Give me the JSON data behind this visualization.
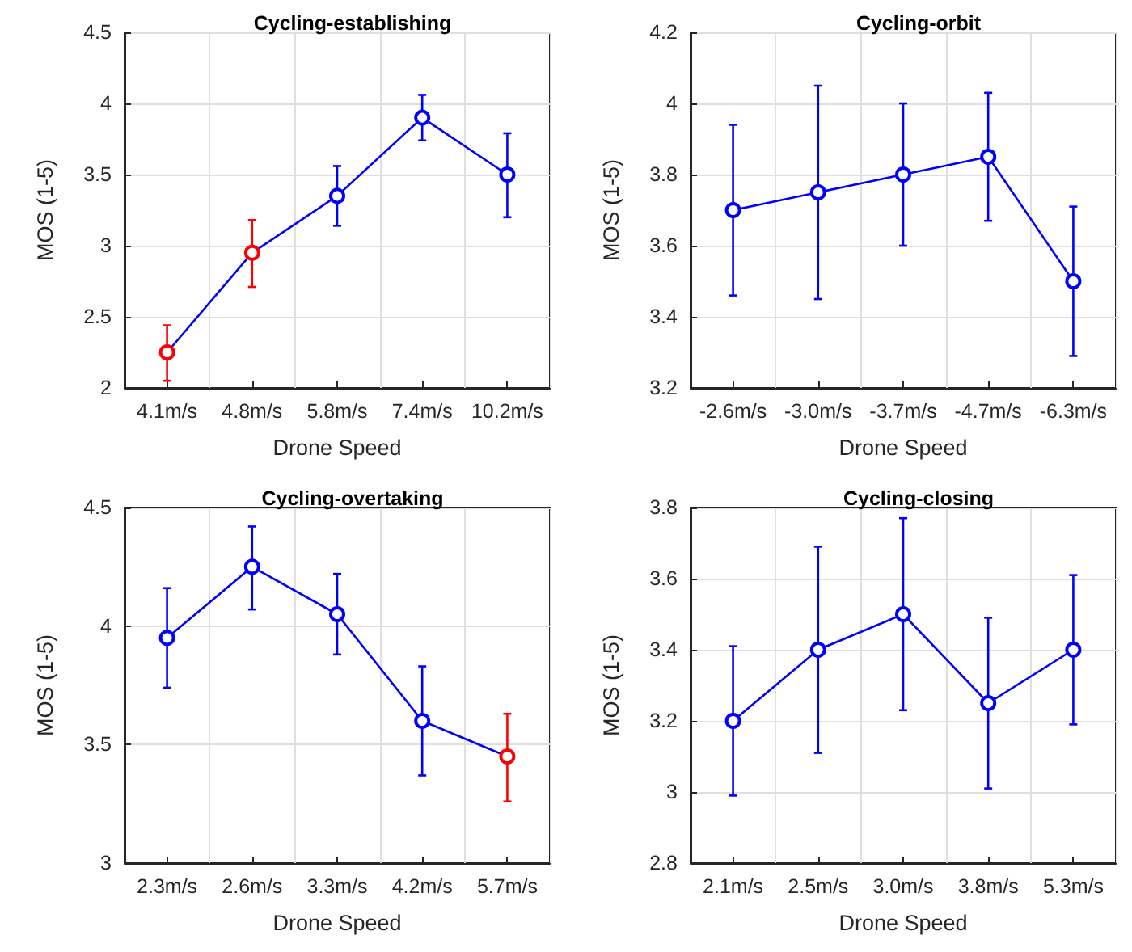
{
  "chart_data": [
    {
      "type": "line",
      "title": "Cycling-establishing",
      "xlabel": "Drone Speed",
      "ylabel": "MOS (1-5)",
      "categories": [
        "4.1m/s",
        "4.8m/s",
        "5.8m/s",
        "7.4m/s",
        "10.2m/s"
      ],
      "ylim": [
        2,
        4.5
      ],
      "yticks": [
        2,
        2.5,
        3,
        3.5,
        4,
        4.5
      ],
      "grid": true,
      "marker": "circle",
      "line_style": "solid",
      "series": [
        {
          "color": "#0000ff",
          "colors": [
            "#ff0000",
            "#ff0000",
            "#0000ff",
            "#0000ff",
            "#0000ff"
          ],
          "values": [
            2.25,
            2.95,
            3.35,
            3.9,
            3.5
          ],
          "errors": [
            [
              2.05,
              2.44
            ],
            [
              2.71,
              3.18
            ],
            [
              3.14,
              3.56
            ],
            [
              3.74,
              4.06
            ],
            [
              3.2,
              3.79
            ]
          ]
        }
      ]
    },
    {
      "type": "line",
      "title": "Cycling-orbit",
      "xlabel": "Drone Speed",
      "ylabel": "MOS (1-5)",
      "categories": [
        "-2.6m/s",
        "-3.0m/s",
        "-3.7m/s",
        "-4.7m/s",
        "-6.3m/s"
      ],
      "ylim": [
        3.2,
        4.2
      ],
      "yticks": [
        3.2,
        3.4,
        3.6,
        3.8,
        4,
        4.2
      ],
      "grid": true,
      "marker": "circle",
      "line_style": "solid",
      "series": [
        {
          "color": "#0000ff",
          "colors": [
            "#0000ff",
            "#0000ff",
            "#0000ff",
            "#0000ff",
            "#0000ff"
          ],
          "values": [
            3.7,
            3.75,
            3.8,
            3.85,
            3.5
          ],
          "errors": [
            [
              3.46,
              3.94
            ],
            [
              3.45,
              4.05
            ],
            [
              3.6,
              4.0
            ],
            [
              3.67,
              4.03
            ],
            [
              3.29,
              3.71
            ]
          ]
        }
      ]
    },
    {
      "type": "line",
      "title": "Cycling-overtaking",
      "xlabel": "Drone Speed",
      "ylabel": "MOS (1-5)",
      "categories": [
        "2.3m/s",
        "2.6m/s",
        "3.3m/s",
        "4.2m/s",
        "5.7m/s"
      ],
      "ylim": [
        3,
        4.5
      ],
      "yticks": [
        3,
        3.5,
        4,
        4.5
      ],
      "grid": true,
      "marker": "circle",
      "line_style": "solid",
      "series": [
        {
          "color": "#0000ff",
          "colors": [
            "#0000ff",
            "#0000ff",
            "#0000ff",
            "#0000ff",
            "#ff0000"
          ],
          "values": [
            3.95,
            4.25,
            4.05,
            3.6,
            3.45
          ],
          "errors": [
            [
              3.74,
              4.16
            ],
            [
              4.07,
              4.42
            ],
            [
              3.88,
              4.22
            ],
            [
              3.37,
              3.83
            ],
            [
              3.26,
              3.63
            ]
          ]
        }
      ]
    },
    {
      "type": "line",
      "title": "Cycling-closing",
      "xlabel": "Drone Speed",
      "ylabel": "MOS (1-5)",
      "categories": [
        "2.1m/s",
        "2.5m/s",
        "3.0m/s",
        "3.8m/s",
        "5.3m/s"
      ],
      "ylim": [
        2.8,
        3.8
      ],
      "yticks": [
        2.8,
        3,
        3.2,
        3.4,
        3.6,
        3.8
      ],
      "grid": true,
      "marker": "circle",
      "line_style": "solid",
      "series": [
        {
          "color": "#0000ff",
          "colors": [
            "#0000ff",
            "#0000ff",
            "#0000ff",
            "#0000ff",
            "#0000ff"
          ],
          "values": [
            3.2,
            3.4,
            3.5,
            3.25,
            3.4
          ],
          "errors": [
            [
              2.99,
              3.41
            ],
            [
              3.11,
              3.69
            ],
            [
              3.23,
              3.77
            ],
            [
              3.01,
              3.49
            ],
            [
              3.19,
              3.61
            ]
          ]
        }
      ]
    }
  ]
}
